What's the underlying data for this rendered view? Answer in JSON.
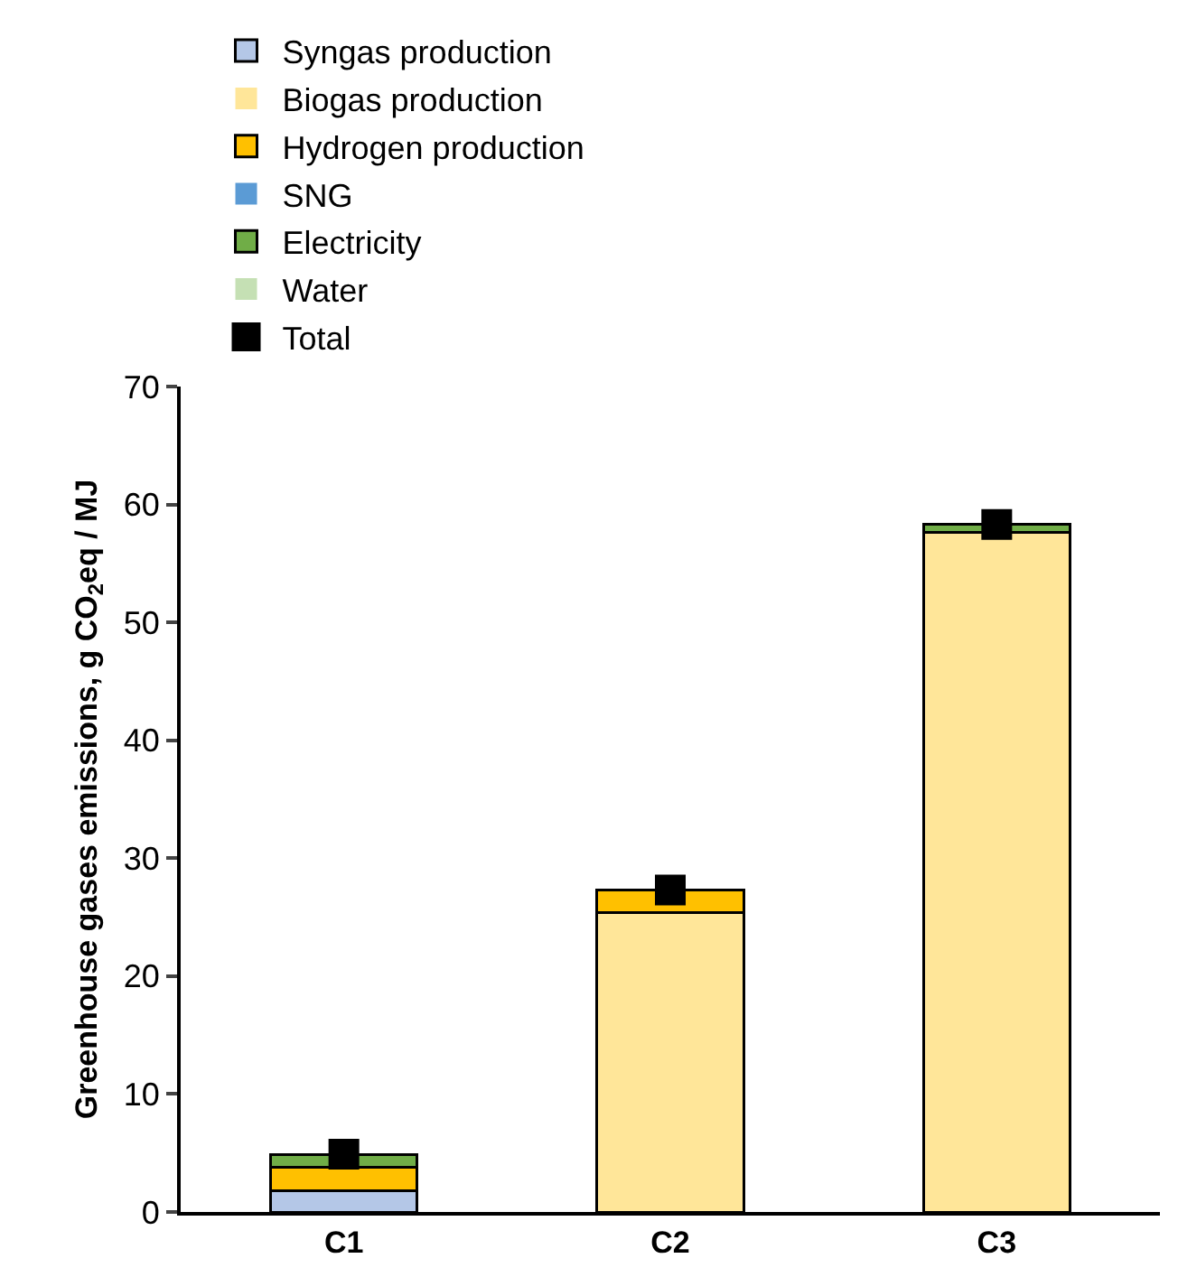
{
  "chart_data": {
    "type": "bar",
    "stacked": true,
    "ylabel": "Greenhouse gases emissions, g CO$_{2}$eq / MJ",
    "categories": [
      "C1",
      "C2",
      "C3"
    ],
    "series": [
      {
        "name": "Syngas production",
        "color": "#b4c7e7",
        "values": [
          1.8,
          0,
          0
        ]
      },
      {
        "name": "Biogas production",
        "color": "#ffe699",
        "values": [
          0,
          25.4,
          57.6
        ]
      },
      {
        "name": "Hydrogen production",
        "color": "#ffc000",
        "values": [
          2.0,
          1.9,
          0
        ]
      },
      {
        "name": "SNG",
        "color": "#5b9bd5",
        "values": [
          0,
          0,
          0
        ]
      },
      {
        "name": "Electricity",
        "color": "#70ad47",
        "values": [
          1.1,
          0,
          0.7
        ]
      },
      {
        "name": "Water",
        "color": "#c5e0b4",
        "values": [
          0,
          0,
          0
        ]
      },
      {
        "name": "Total",
        "type": "scatter",
        "marker": "square",
        "color": "#000000",
        "x": [
          "C1",
          "C2",
          "C3"
        ],
        "values": [
          4.9,
          27.3,
          58.3
        ]
      }
    ],
    "ylim": [
      0,
      70
    ],
    "yticks": [
      0,
      10,
      20,
      30,
      40,
      50,
      60,
      70
    ],
    "grid": false,
    "legend": "top"
  }
}
